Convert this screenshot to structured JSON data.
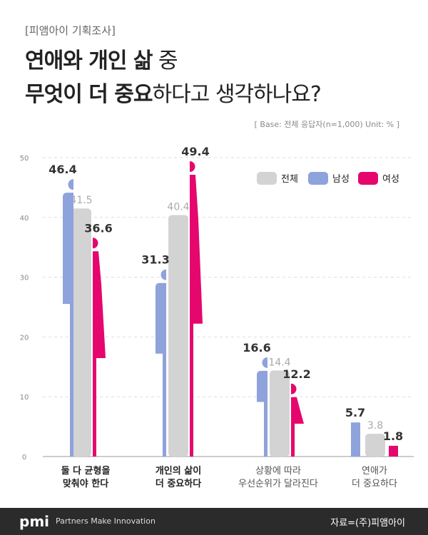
{
  "header": {
    "tag": "[피앰아이 기획조사]",
    "title_line1_bold": "연애와 개인 삶",
    "title_line1_normal": " 중",
    "title_line2_bold": "무엇이 더 중요",
    "title_line2_normal": "하다고 생각하나요?",
    "base": "[ Base: 전체 응답자(n=1,000) Unit: % ]"
  },
  "footer": {
    "logo": "pmi",
    "slogan": "Partners Make Innovation",
    "source": "자료=(주)피앰아이"
  },
  "chart_data": {
    "type": "bar",
    "categories": [
      [
        "둘 다 균형을",
        "맞춰야 한다"
      ],
      [
        "개인의 삶이",
        "더 중요하다"
      ],
      [
        "상황에 따라",
        "우선순위가 달라진다"
      ],
      [
        "연애가",
        "더 중요하다"
      ]
    ],
    "series": [
      {
        "name": "남성",
        "color": "#8ea2dc",
        "values": [
          46.4,
          31.3,
          16.6,
          5.7
        ]
      },
      {
        "name": "전체",
        "color": "#d3d3d3",
        "values": [
          41.5,
          40.4,
          14.4,
          3.8
        ]
      },
      {
        "name": "여성",
        "color": "#e5076d",
        "values": [
          36.6,
          49.4,
          12.2,
          1.8
        ]
      }
    ],
    "legend_order": [
      "전체",
      "남성",
      "여성"
    ],
    "legend_position": "top-right",
    "ylim": [
      0,
      50
    ],
    "yticks": [
      0,
      10,
      20,
      30,
      40,
      50
    ],
    "grid": true
  }
}
